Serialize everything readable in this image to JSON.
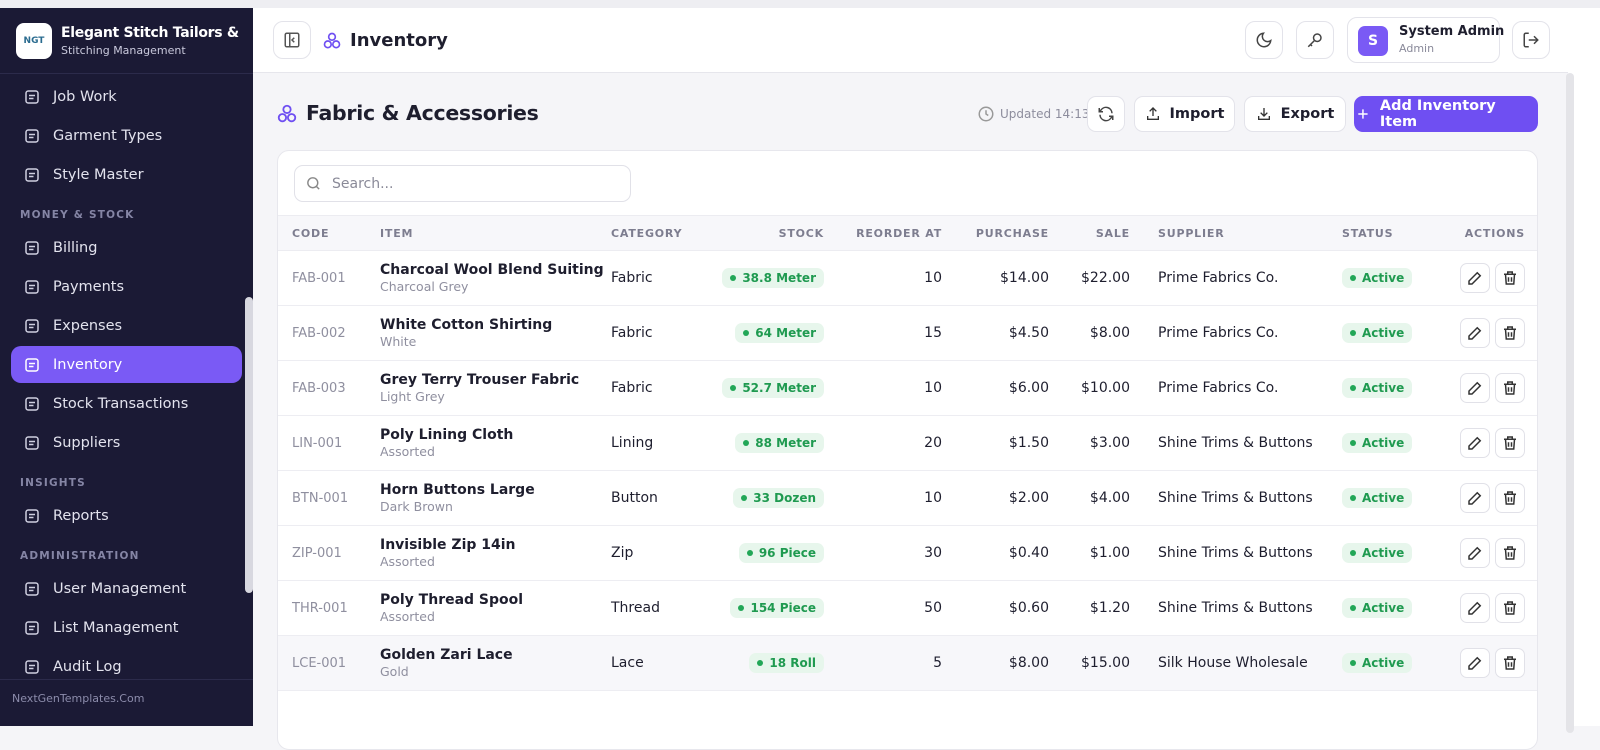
{
  "sidebar": {
    "brand": {
      "logo": "NGT",
      "name": "Elegant Stitch Tailors & Bou",
      "subtitle": "Stitching Management"
    },
    "sections": [
      {
        "items": [
          "Job Work",
          "Garment Types",
          "Style Master"
        ]
      },
      {
        "title": "MONEY & STOCK",
        "items": [
          "Billing",
          "Payments",
          "Expenses",
          "Inventory",
          "Stock Transactions",
          "Suppliers"
        ]
      },
      {
        "title": "INSIGHTS",
        "items": [
          "Reports"
        ]
      },
      {
        "title": "ADMINISTRATION",
        "items": [
          "User Management",
          "List Management",
          "Audit Log"
        ]
      }
    ],
    "footer": "NextGenTemplates.Com"
  },
  "header": {
    "title": "Inventory",
    "user": {
      "avatar": "S",
      "name": "System Admin",
      "role": "Admin"
    }
  },
  "page": {
    "title": "Fabric & Accessories",
    "updated": "Updated 14:13",
    "buttons": {
      "import": "Import",
      "export": "Export",
      "add": "Add Inventory Item"
    },
    "search_placeholder": "Search..."
  },
  "table": {
    "columns": [
      "CODE",
      "ITEM",
      "CATEGORY",
      "STOCK",
      "REORDER AT",
      "PURCHASE",
      "SALE",
      "SUPPLIER",
      "STATUS",
      "ACTIONS"
    ],
    "rows": [
      {
        "code": "FAB-001",
        "item": "Charcoal Wool Blend Suiting",
        "variant": "Charcoal Grey",
        "category": "Fabric",
        "stock": "38.8 Meter",
        "reorder": 10,
        "purchase": "$14.00",
        "sale": "$22.00",
        "supplier": "Prime Fabrics Co.",
        "status": "Active"
      },
      {
        "code": "FAB-002",
        "item": "White Cotton Shirting",
        "variant": "White",
        "category": "Fabric",
        "stock": "64 Meter",
        "reorder": 15,
        "purchase": "$4.50",
        "sale": "$8.00",
        "supplier": "Prime Fabrics Co.",
        "status": "Active"
      },
      {
        "code": "FAB-003",
        "item": "Grey Terry Trouser Fabric",
        "variant": "Light Grey",
        "category": "Fabric",
        "stock": "52.7 Meter",
        "reorder": 10,
        "purchase": "$6.00",
        "sale": "$10.00",
        "supplier": "Prime Fabrics Co.",
        "status": "Active"
      },
      {
        "code": "LIN-001",
        "item": "Poly Lining Cloth",
        "variant": "Assorted",
        "category": "Lining",
        "stock": "88 Meter",
        "reorder": 20,
        "purchase": "$1.50",
        "sale": "$3.00",
        "supplier": "Shine Trims & Buttons",
        "status": "Active"
      },
      {
        "code": "BTN-001",
        "item": "Horn Buttons Large",
        "variant": "Dark Brown",
        "category": "Button",
        "stock": "33 Dozen",
        "reorder": 10,
        "purchase": "$2.00",
        "sale": "$4.00",
        "supplier": "Shine Trims & Buttons",
        "status": "Active"
      },
      {
        "code": "ZIP-001",
        "item": "Invisible Zip 14in",
        "variant": "Assorted",
        "category": "Zip",
        "stock": "96 Piece",
        "reorder": 30,
        "purchase": "$0.40",
        "sale": "$1.00",
        "supplier": "Shine Trims & Buttons",
        "status": "Active"
      },
      {
        "code": "THR-001",
        "item": "Poly Thread Spool",
        "variant": "Assorted",
        "category": "Thread",
        "stock": "154 Piece",
        "reorder": 50,
        "purchase": "$0.60",
        "sale": "$1.20",
        "supplier": "Shine Trims & Buttons",
        "status": "Active"
      },
      {
        "code": "LCE-001",
        "item": "Golden Zari Lace",
        "variant": "Gold",
        "category": "Lace",
        "stock": "18 Roll",
        "reorder": 5,
        "purchase": "$8.00",
        "sale": "$15.00",
        "supplier": "Silk House Wholesale",
        "status": "Active"
      }
    ]
  }
}
